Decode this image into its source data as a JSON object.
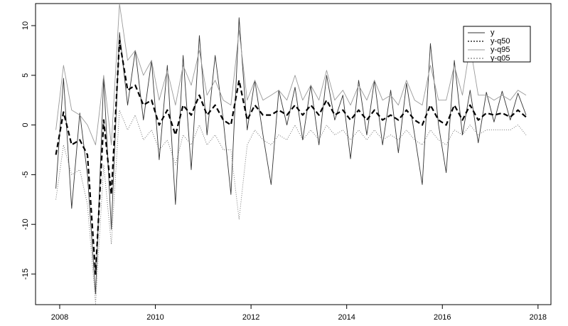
{
  "chart_data": {
    "type": "line",
    "x": [
      2007.92,
      2008.08,
      2008.25,
      2008.42,
      2008.58,
      2008.75,
      2008.92,
      2009.08,
      2009.25,
      2009.42,
      2009.58,
      2009.75,
      2009.92,
      2010.08,
      2010.25,
      2010.42,
      2010.58,
      2010.75,
      2010.92,
      2011.08,
      2011.25,
      2011.42,
      2011.58,
      2011.75,
      2011.92,
      2012.08,
      2012.25,
      2012.42,
      2012.58,
      2012.75,
      2012.92,
      2013.08,
      2013.25,
      2013.42,
      2013.58,
      2013.75,
      2013.92,
      2014.08,
      2014.25,
      2014.42,
      2014.58,
      2014.75,
      2014.92,
      2015.08,
      2015.25,
      2015.42,
      2015.58,
      2015.75,
      2015.92,
      2016.08,
      2016.25,
      2016.42,
      2016.58,
      2016.75,
      2016.92,
      2017.08,
      2017.25,
      2017.42,
      2017.58,
      2017.75
    ],
    "series": [
      {
        "name": "y",
        "color": "#333333",
        "dash": "none",
        "width": 0.9,
        "values": [
          -6.4,
          4.7,
          -8.4,
          1.2,
          -5,
          -17,
          4.8,
          -10.5,
          9.3,
          2,
          7.5,
          0.5,
          6.5,
          -3.5,
          6,
          -8,
          7,
          -4.5,
          9,
          -1,
          7,
          0.5,
          -7,
          10.8,
          -0.5,
          4.5,
          -1,
          -6,
          3.5,
          0,
          3.8,
          -1.5,
          4,
          -2,
          5,
          0.5,
          3,
          -3.4,
          4.5,
          -1,
          4.5,
          -2,
          3.5,
          -2.8,
          4.2,
          -1,
          -6,
          8.2,
          0,
          -4.8,
          6.5,
          -1,
          3.5,
          -1.8,
          3.3,
          0.3,
          3.4,
          0.5,
          3.2,
          1
        ]
      },
      {
        "name": "y-q50",
        "color": "#000000",
        "dash": "7 4",
        "width": 2.2,
        "values": [
          -3,
          1.3,
          -2,
          -1.5,
          -3,
          -15,
          0.5,
          -7,
          8.5,
          3.5,
          4,
          2,
          2.5,
          0,
          1.5,
          -1,
          2,
          1,
          3,
          1,
          2,
          0.5,
          0,
          4.5,
          0.5,
          2,
          1,
          1,
          1.5,
          1,
          2,
          1,
          2,
          1,
          2.5,
          1,
          1.5,
          0.5,
          1.5,
          0.5,
          1.5,
          0.5,
          1,
          0.5,
          1.5,
          0.5,
          0,
          2,
          0.5,
          0,
          2,
          0.5,
          2,
          0.5,
          1.2,
          1,
          1.2,
          0.8,
          1.5,
          0.8
        ]
      },
      {
        "name": "y-q95",
        "color": "#9a9a9a",
        "dash": "none",
        "width": 0.9,
        "values": [
          -0.5,
          6,
          1.5,
          1,
          0,
          -2,
          5,
          -2,
          12.2,
          6.5,
          7.5,
          5,
          6.5,
          2.5,
          5.5,
          2,
          6,
          4,
          7.5,
          3,
          4.5,
          2.5,
          2,
          9.5,
          2.5,
          4.5,
          2.5,
          3,
          3.5,
          2.5,
          5,
          2.5,
          4,
          2.5,
          5.5,
          2.5,
          3.5,
          2,
          4,
          2.5,
          4.5,
          2.5,
          3,
          2,
          4.5,
          2.5,
          2,
          6,
          2.5,
          2.5,
          6,
          3,
          8,
          3,
          3,
          2.5,
          3,
          2.5,
          3.5,
          3
        ]
      },
      {
        "name": "y-q05",
        "color": "#666666",
        "dash": "1 2",
        "width": 0.9,
        "values": [
          -7.5,
          -2,
          -5,
          -4.5,
          -8,
          -18,
          -4,
          -12,
          1.5,
          -0.5,
          1,
          -1.5,
          -0.5,
          -2.5,
          -1.5,
          -4,
          -1,
          -2,
          0,
          -2,
          -1,
          -2.5,
          -2.5,
          -9.5,
          -2,
          -0.5,
          -1.5,
          -2,
          -1,
          -1.5,
          0,
          -1.5,
          -0.5,
          -1.5,
          0,
          -1,
          -0.5,
          -1.5,
          -0.5,
          -1.5,
          -0.5,
          -1.5,
          -1,
          -1.5,
          -0.5,
          -1.5,
          -2,
          -0.5,
          -1.5,
          -2,
          -0.5,
          -1,
          0,
          -1,
          -0.5,
          -0.5,
          -0.5,
          -0.5,
          0,
          -1
        ]
      }
    ],
    "xlim": [
      2007.495,
      2018.27
    ],
    "xticks": [
      2008,
      2010,
      2012,
      2014,
      2016,
      2018
    ],
    "ylim": [
      -18.08,
      12.22
    ],
    "yticks": [
      -15,
      -10,
      -5,
      0,
      5,
      10
    ],
    "legend": "top-right"
  }
}
